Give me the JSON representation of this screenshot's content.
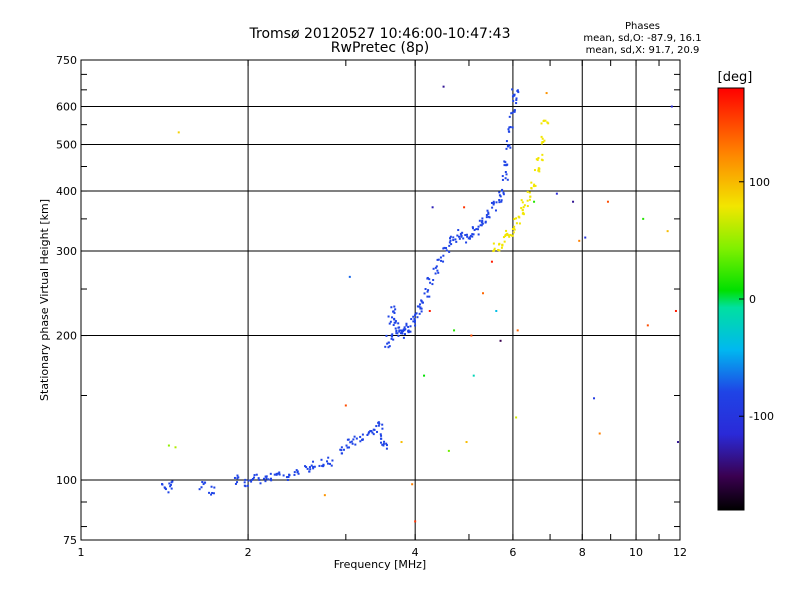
{
  "chart_data": {
    "type": "scatter",
    "title": "Tromsø 20120527 10:46:00-10:47:43",
    "subtitle": "RwPretec (8p)",
    "xlabel": "Frequency [MHz]",
    "ylabel": "Stationary phase Virtual Height [km]",
    "xscale": "log",
    "yscale": "log",
    "xlim": [
      1,
      12
    ],
    "ylim": [
      75,
      750
    ],
    "xticks": [
      1,
      2,
      4,
      6,
      8,
      10,
      12
    ],
    "yticks": [
      75,
      100,
      200,
      300,
      400,
      500,
      600,
      750
    ],
    "grid": true,
    "phase_box": {
      "title": "Phases",
      "o_label": "mean, sd,O: -87.9, 16.1",
      "x_label": "mean, sd,X: 91.7, 20.9"
    },
    "colorbar": {
      "label": "[deg]",
      "min": -180,
      "max": 180,
      "ticks": [
        100,
        0,
        -100
      ]
    },
    "series": [
      {
        "name": "O-mode trace",
        "color": "#1f44e6",
        "x": [
          1.42,
          1.45,
          1.65,
          1.72,
          1.92,
          1.98,
          2.05,
          2.12,
          2.18,
          2.25,
          2.35,
          2.45,
          2.55,
          2.62,
          2.72,
          2.8,
          2.95,
          3.02,
          3.1,
          3.2,
          3.3,
          3.38,
          3.45,
          3.5,
          3.52,
          3.55,
          3.6,
          3.62,
          3.65,
          3.68,
          3.7,
          3.75,
          3.8,
          3.85,
          3.9,
          3.95,
          4.0,
          4.05,
          4.1,
          4.2,
          4.25,
          4.35,
          4.45,
          4.55,
          4.65,
          4.75,
          4.85,
          4.95,
          5.05,
          5.15,
          5.25,
          5.35,
          5.45,
          5.55,
          5.65,
          5.72,
          5.8,
          5.85,
          5.9,
          5.95,
          6.0,
          6.02,
          6.05
        ],
        "y": [
          96,
          98,
          97,
          95,
          100,
          99,
          101,
          100,
          101,
          102,
          102,
          104,
          106,
          107,
          108,
          109,
          116,
          119,
          121,
          123,
          124,
          127,
          130,
          122,
          118,
          190,
          200,
          215,
          225,
          210,
          205,
          203,
          202,
          204,
          208,
          213,
          219,
          225,
          232,
          245,
          260,
          275,
          290,
          305,
          315,
          320,
          325,
          318,
          325,
          330,
          340,
          350,
          360,
          372,
          385,
          400,
          430,
          460,
          500,
          540,
          580,
          620,
          640
        ]
      },
      {
        "name": "X-mode trace",
        "color": "#f2e600",
        "x": [
          5.6,
          5.7,
          5.8,
          5.9,
          6.0,
          6.1,
          6.2,
          6.3,
          6.4,
          6.5,
          6.6,
          6.7,
          6.8,
          6.85
        ],
        "y": [
          305,
          310,
          320,
          325,
          330,
          345,
          360,
          375,
          390,
          410,
          440,
          470,
          510,
          550
        ]
      },
      {
        "name": "scattered echoes",
        "color_by_phase": true,
        "x": [
          1.5,
          1.44,
          1.48,
          2.75,
          3.0,
          3.05,
          3.78,
          3.95,
          4.0,
          4.15,
          4.25,
          4.3,
          4.5,
          4.6,
          4.7,
          4.9,
          4.95,
          5.05,
          5.1,
          5.3,
          5.5,
          5.6,
          5.7,
          6.08,
          6.12,
          6.55,
          6.9,
          7.2,
          7.7,
          7.9,
          8.1,
          8.4,
          8.6,
          8.9,
          10.3,
          10.5,
          11.4,
          11.6,
          11.8,
          11.9
        ],
        "y": [
          530,
          118,
          117,
          93,
          143,
          265,
          120,
          98,
          82,
          165,
          225,
          370,
          660,
          115,
          205,
          370,
          120,
          200,
          165,
          245,
          285,
          225,
          195,
          135,
          205,
          380,
          640,
          395,
          380,
          315,
          320,
          148,
          125,
          380,
          350,
          210,
          330,
          600,
          225,
          120
        ],
        "phases": [
          90,
          50,
          60,
          120,
          150,
          -70,
          100,
          130,
          160,
          10,
          170,
          -120,
          -130,
          40,
          20,
          160,
          100,
          150,
          -20,
          140,
          170,
          -40,
          -150,
          70,
          140,
          20,
          120,
          -110,
          -130,
          130,
          -100,
          -90,
          130,
          150,
          20,
          150,
          100,
          -110,
          170,
          -130
        ]
      }
    ]
  }
}
